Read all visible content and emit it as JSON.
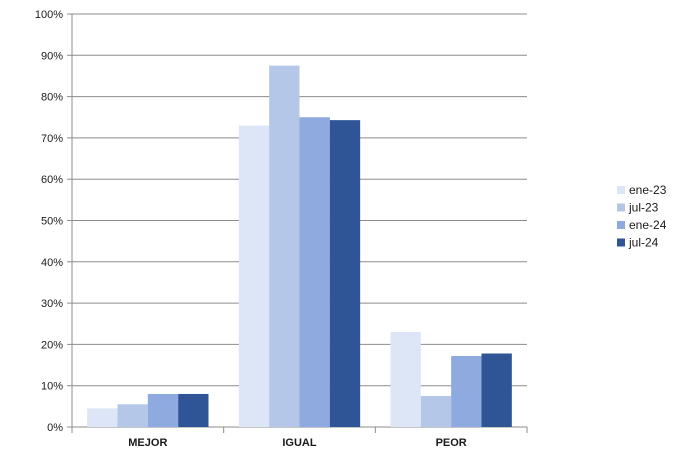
{
  "chart_data": {
    "type": "bar",
    "categories": [
      "MEJOR",
      "IGUAL",
      "PEOR"
    ],
    "series": [
      {
        "name": "ene-23",
        "values": [
          4.5,
          73,
          23
        ],
        "color": "#dce6f6"
      },
      {
        "name": "jul-23",
        "values": [
          5.5,
          87.5,
          7.5
        ],
        "color": "#b4c7e8"
      },
      {
        "name": "ene-24",
        "values": [
          8,
          75,
          17.2
        ],
        "color": "#8eaadf"
      },
      {
        "name": "jul-24",
        "values": [
          8,
          74.3,
          17.8
        ],
        "color": "#2f5597"
      }
    ],
    "ylim": [
      0,
      100
    ],
    "ytick_step": 10,
    "ytick_suffix": "%",
    "grid": true,
    "legend_position": "right",
    "title": "",
    "xlabel": "",
    "ylabel": ""
  }
}
